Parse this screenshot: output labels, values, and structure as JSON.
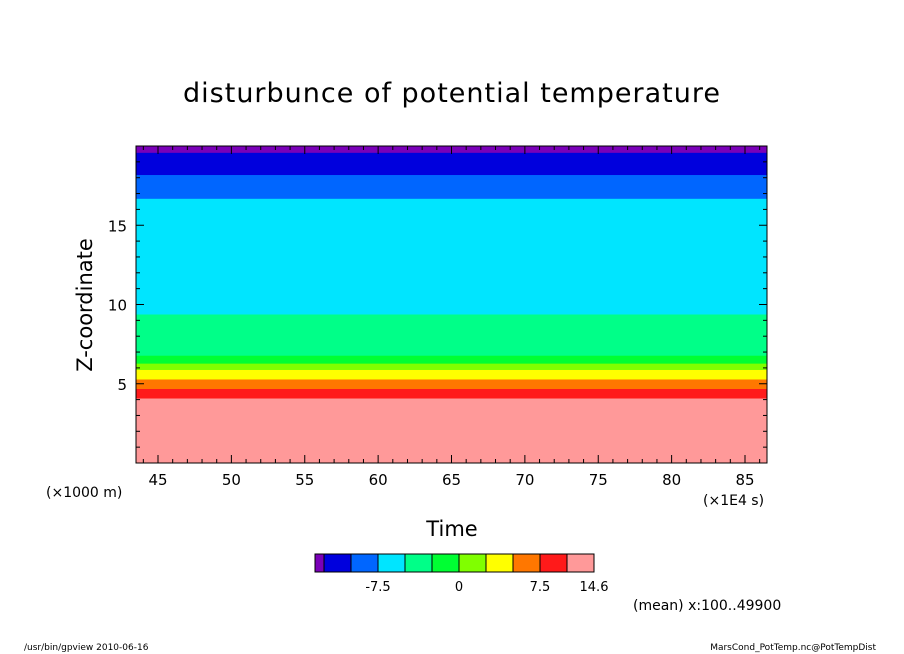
{
  "chart_data": {
    "type": "heatmap",
    "title": "disturbunce of potential temperature",
    "xlabel": "Time",
    "ylabel": "Z-coordinate",
    "x_unit": "(×1E4 s)",
    "y_unit": "(×1000 m)",
    "xlim": [
      43.5,
      86.5
    ],
    "ylim": [
      0,
      20
    ],
    "x_ticks": [
      45,
      50,
      55,
      60,
      65,
      70,
      75,
      80,
      85
    ],
    "y_ticks": [
      5,
      10,
      15
    ],
    "bands": [
      {
        "z_from": 0.0,
        "z_to": 4.1,
        "level": "14.6",
        "color": "#ff9999"
      },
      {
        "z_from": 4.1,
        "z_to": 4.7,
        "level": "12.0",
        "color": "#ff1a1a"
      },
      {
        "z_from": 4.7,
        "z_to": 5.3,
        "level": "10.0",
        "color": "#ff7700"
      },
      {
        "z_from": 5.3,
        "z_to": 5.9,
        "level": "7.5",
        "color": "#ffff00"
      },
      {
        "z_from": 5.9,
        "z_to": 6.3,
        "level": "5.0",
        "color": "#80ff00"
      },
      {
        "z_from": 6.3,
        "z_to": 6.8,
        "level": "2.5",
        "color": "#00ff33"
      },
      {
        "z_from": 6.8,
        "z_to": 9.4,
        "level": "0",
        "color": "#00ff88"
      },
      {
        "z_from": 9.4,
        "z_to": 16.7,
        "level": "-2.5",
        "color": "#00e5ff"
      },
      {
        "z_from": 16.7,
        "z_to": 18.2,
        "level": "-5.0",
        "color": "#0066ff"
      },
      {
        "z_from": 18.2,
        "z_to": 19.6,
        "level": "-7.5",
        "color": "#0000dd"
      },
      {
        "z_from": 19.6,
        "z_to": 20.0,
        "level": "-10.0",
        "color": "#7a00b8"
      }
    ],
    "colorbar": {
      "colors": [
        "#7a00b8",
        "#0000dd",
        "#0066ff",
        "#00e5ff",
        "#00ff88",
        "#00ff33",
        "#80ff00",
        "#ffff00",
        "#ff7700",
        "#ff1a1a",
        "#ff9999"
      ],
      "tick_labels": [
        "-7.5",
        "0",
        "7.5",
        "14.6"
      ]
    },
    "mean_note": "(mean) x:100..49900",
    "grid": false
  },
  "footer": {
    "left": "/usr/bin/gpview  2010-06-16",
    "right": "MarsCond_PotTemp.nc@PotTempDist"
  }
}
